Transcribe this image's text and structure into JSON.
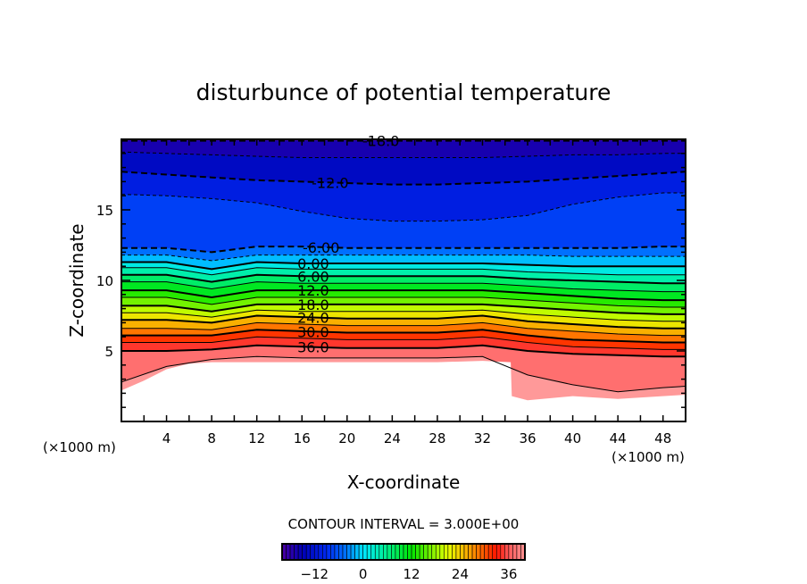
{
  "chart_data": {
    "type": "contour",
    "title": "disturbunce of potential temperature",
    "xlabel": "X-coordinate",
    "ylabel": "Z-coordinate",
    "x_unit_left": "(×1000 m)",
    "x_unit_right": "(×1000 m)",
    "xlim": [
      0,
      50
    ],
    "ylim": [
      0,
      20
    ],
    "x_ticks": [
      4,
      8,
      12,
      16,
      20,
      24,
      28,
      32,
      36,
      40,
      44,
      48
    ],
    "y_ticks": [
      5,
      10,
      15
    ],
    "contour_interval_text": "CONTOUR INTERVAL = 3.000E+00",
    "x_samples": [
      0,
      4,
      8,
      12,
      16,
      20,
      24,
      28,
      32,
      36,
      40,
      44,
      48,
      50
    ],
    "contours": [
      {
        "level": -18,
        "z": [
          19.9,
          19.9,
          19.9,
          19.9,
          19.9,
          19.9,
          19.9,
          19.9,
          19.9,
          19.9,
          19.9,
          19.9,
          19.9,
          19.9
        ]
      },
      {
        "level": -15,
        "z": [
          19.1,
          19.0,
          18.9,
          18.8,
          18.7,
          18.7,
          18.7,
          18.7,
          18.7,
          18.8,
          18.9,
          18.9,
          19.0,
          19.0
        ]
      },
      {
        "level": -12,
        "z": [
          17.7,
          17.5,
          17.3,
          17.1,
          17.0,
          16.9,
          16.8,
          16.8,
          16.9,
          17.0,
          17.2,
          17.4,
          17.6,
          17.7
        ]
      },
      {
        "level": -9,
        "z": [
          16.1,
          16.0,
          15.8,
          15.5,
          14.9,
          14.4,
          14.2,
          14.2,
          14.3,
          14.6,
          15.4,
          15.9,
          16.2,
          16.2
        ]
      },
      {
        "level": -6,
        "z": [
          12.3,
          12.3,
          12.0,
          12.4,
          12.4,
          12.3,
          12.3,
          12.3,
          12.3,
          12.3,
          12.3,
          12.3,
          12.4,
          12.4
        ]
      },
      {
        "level": -3,
        "z": [
          11.8,
          11.8,
          11.4,
          11.8,
          11.8,
          11.8,
          11.8,
          11.8,
          11.8,
          11.8,
          11.7,
          11.7,
          11.7,
          11.7
        ]
      },
      {
        "level": 0,
        "z": [
          11.3,
          11.3,
          10.8,
          11.3,
          11.2,
          11.2,
          11.2,
          11.2,
          11.2,
          11.1,
          11.0,
          11.0,
          11.0,
          11.0
        ]
      },
      {
        "level": 3,
        "z": [
          10.9,
          10.9,
          10.4,
          10.9,
          10.8,
          10.8,
          10.8,
          10.8,
          10.8,
          10.6,
          10.5,
          10.4,
          10.4,
          10.4
        ]
      },
      {
        "level": 6,
        "z": [
          10.4,
          10.4,
          9.9,
          10.4,
          10.3,
          10.3,
          10.3,
          10.3,
          10.3,
          10.1,
          10.0,
          9.9,
          9.8,
          9.8
        ]
      },
      {
        "level": 9,
        "z": [
          9.9,
          9.9,
          9.4,
          9.9,
          9.8,
          9.8,
          9.8,
          9.8,
          9.8,
          9.6,
          9.4,
          9.3,
          9.2,
          9.2
        ]
      },
      {
        "level": 12,
        "z": [
          9.3,
          9.3,
          8.8,
          9.3,
          9.3,
          9.3,
          9.3,
          9.3,
          9.3,
          9.1,
          8.9,
          8.7,
          8.6,
          8.6
        ]
      },
      {
        "level": 15,
        "z": [
          8.8,
          8.8,
          8.3,
          8.8,
          8.8,
          8.8,
          8.8,
          8.8,
          8.8,
          8.6,
          8.4,
          8.2,
          8.1,
          8.1
        ]
      },
      {
        "level": 18,
        "z": [
          8.2,
          8.2,
          7.8,
          8.3,
          8.3,
          8.3,
          8.3,
          8.3,
          8.3,
          8.1,
          7.9,
          7.7,
          7.6,
          7.6
        ]
      },
      {
        "level": 21,
        "z": [
          7.7,
          7.7,
          7.4,
          7.9,
          7.8,
          7.8,
          7.8,
          7.8,
          7.9,
          7.6,
          7.4,
          7.2,
          7.1,
          7.1
        ]
      },
      {
        "level": 24,
        "z": [
          7.2,
          7.2,
          7.0,
          7.5,
          7.4,
          7.3,
          7.3,
          7.3,
          7.5,
          7.1,
          6.9,
          6.7,
          6.6,
          6.6
        ]
      },
      {
        "level": 27,
        "z": [
          6.6,
          6.6,
          6.5,
          7.0,
          6.9,
          6.8,
          6.8,
          6.8,
          7.0,
          6.6,
          6.4,
          6.2,
          6.1,
          6.1
        ]
      },
      {
        "level": 30,
        "z": [
          6.1,
          6.1,
          6.1,
          6.5,
          6.4,
          6.3,
          6.3,
          6.3,
          6.5,
          6.1,
          5.8,
          5.7,
          5.6,
          5.6
        ]
      },
      {
        "level": 33,
        "z": [
          5.6,
          5.6,
          5.6,
          6.0,
          5.9,
          5.8,
          5.8,
          5.8,
          6.0,
          5.6,
          5.3,
          5.2,
          5.1,
          5.1
        ]
      },
      {
        "level": 36,
        "z": [
          5.0,
          5.0,
          5.1,
          5.4,
          5.3,
          5.2,
          5.2,
          5.2,
          5.4,
          5.0,
          4.8,
          4.7,
          4.6,
          4.6
        ]
      },
      {
        "level": 39,
        "z": [
          2.8,
          3.9,
          4.4,
          4.6,
          4.5,
          4.5,
          4.5,
          4.5,
          4.6,
          3.3,
          2.6,
          2.1,
          2.4,
          2.5
        ]
      }
    ],
    "terrain": {
      "x": [
        0,
        2,
        4,
        6,
        8,
        12,
        20,
        28,
        32,
        34.5,
        34.6,
        36,
        40,
        44,
        48,
        50
      ],
      "z": [
        2.2,
        2.9,
        3.7,
        4.1,
        4.2,
        4.2,
        4.2,
        4.2,
        4.3,
        4.2,
        1.8,
        1.5,
        1.8,
        1.6,
        1.8,
        1.9
      ]
    },
    "contour_labels": [
      {
        "text": "-18.0",
        "level": -18
      },
      {
        "text": "-12.0",
        "level": -12
      },
      {
        "text": "-6.00",
        "level": -6
      },
      {
        "text": "0.00",
        "level": 0
      },
      {
        "text": "6.00",
        "level": 6
      },
      {
        "text": "12.0",
        "level": 12
      },
      {
        "text": "18.0",
        "level": 18
      },
      {
        "text": "24.0",
        "level": 24
      },
      {
        "text": "30.0",
        "level": 30
      },
      {
        "text": "36.0",
        "level": 36
      }
    ],
    "colorbar": {
      "range": [
        -20,
        40
      ],
      "tick_labels": [
        {
          "value": -12,
          "text": "−12"
        },
        {
          "value": 0,
          "text": "0"
        },
        {
          "value": 12,
          "text": "12"
        },
        {
          "value": 24,
          "text": "24"
        },
        {
          "value": 36,
          "text": "36"
        }
      ]
    },
    "colormap": [
      {
        "v": -21,
        "c": "#5a00a0"
      },
      {
        "v": -15,
        "c": "#0000b4"
      },
      {
        "v": -9,
        "c": "#0028f0"
      },
      {
        "v": -4,
        "c": "#0078ff"
      },
      {
        "v": 0,
        "c": "#00e6ff"
      },
      {
        "v": 5,
        "c": "#00f0a0"
      },
      {
        "v": 12,
        "c": "#00e600"
      },
      {
        "v": 21,
        "c": "#e6ff00"
      },
      {
        "v": 27,
        "c": "#ff9600"
      },
      {
        "v": 33,
        "c": "#ff1400"
      },
      {
        "v": 36,
        "c": "#ff5a5a"
      },
      {
        "v": 41,
        "c": "#ffa0a0"
      }
    ]
  }
}
